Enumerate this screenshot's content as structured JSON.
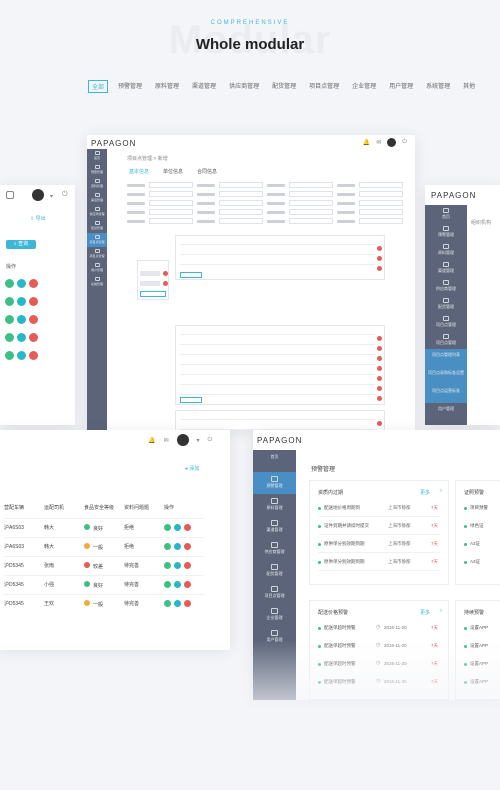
{
  "hero": {
    "kicker": "COMPREHENSIVE",
    "bg_word": "Modular",
    "title": "Whole modular"
  },
  "categories": [
    "全部",
    "预警管理",
    "原料管理",
    "渠道管理",
    "供应商管理",
    "配货管理",
    "项目点管理",
    "企业管理",
    "用户管理",
    "系统管理",
    "其他"
  ],
  "brand": "PAPAGON",
  "center": {
    "breadcrumb": "项目点管理 > 新增",
    "tabs": [
      "基本信息",
      "单位信息",
      "合同信息"
    ],
    "nav": [
      "首页",
      "预警管理",
      "原料管理",
      "渠道管理",
      "供应商管理",
      "配货管理",
      "项目点管理",
      "项目点管理",
      "用户管理",
      "系统管理"
    ],
    "add_label": "添加"
  },
  "left_top": {
    "search_label": "查询",
    "export_label": "导出",
    "ops_header": "操作"
  },
  "right_top": {
    "nav": [
      "首页",
      "预警管理",
      "原料管理",
      "渠道管理",
      "供应商管理",
      "配货管理",
      "项目点管理",
      "项目点管理",
      "项目点管理列表",
      "项目点采购标准设置",
      "项目点运营标准",
      "用户管理"
    ],
    "crumb": "组织机构"
  },
  "bottom_left": {
    "cols": [
      "营配车辆",
      "运配司机",
      "食品安全等级",
      "资料问题题",
      "操作"
    ],
    "rows": [
      {
        "plate": "沪A6S03",
        "driver": "韩大",
        "level": "良好",
        "status": "拒绝",
        "color": "#3ebf86"
      },
      {
        "plate": "沪A6S03",
        "driver": "韩大",
        "level": "一般",
        "status": "拒绝",
        "color": "#f3a93b"
      },
      {
        "plate": "沪D5345",
        "driver": "张雨",
        "level": "较差",
        "status": "待完善",
        "color": "#e55b55"
      },
      {
        "plate": "沪D5345",
        "driver": "小强",
        "level": "良好",
        "status": "待完善",
        "color": "#3ebf86"
      },
      {
        "plate": "沪D5345",
        "driver": "王欢",
        "level": "一般",
        "status": "待完善",
        "color": "#f3a93b"
      }
    ],
    "add_label": "添加"
  },
  "bottom_right": {
    "nav": [
      "首页",
      "预警管理",
      "原料管理",
      "渠道管理",
      "供应商管理",
      "配货管理",
      "项目点管理",
      "企业管理",
      "用户管理"
    ],
    "page_title": "预警管理",
    "card1": {
      "title": "资质内过期",
      "more": "更多",
      "items": [
        {
          "text": "配送地价格周期到",
          "place": "上海市静都",
          "days": "7天"
        },
        {
          "text": "证件到期并请续时提交",
          "place": "上海市静都",
          "days": "7天"
        },
        {
          "text": "原供单分别效期到期",
          "place": "上海市静都",
          "days": "7天"
        },
        {
          "text": "原供单分别效期到期",
          "place": "上海市静都",
          "days": "7天"
        }
      ]
    },
    "card2": {
      "title": "证照预警",
      "items": [
        "项目预警",
        "绿色证",
        "A3证",
        "A3证"
      ]
    },
    "card3": {
      "title": "配送价格预警",
      "more": "更多",
      "items": [
        {
          "text": "配送单超时预警",
          "date": "2016-11-20",
          "days": "7天"
        },
        {
          "text": "配送单超时预警",
          "date": "2016-11-20",
          "days": "7天"
        },
        {
          "text": "配送单超时预警",
          "date": "2016-11-20",
          "days": "7天"
        },
        {
          "text": "配送单超时预警",
          "date": "2016-11-20",
          "days": "7天"
        }
      ]
    },
    "card4": {
      "title": "持续预警",
      "items": [
        "设置APP",
        "设置APP",
        "设置APP",
        "设置APP"
      ]
    }
  }
}
